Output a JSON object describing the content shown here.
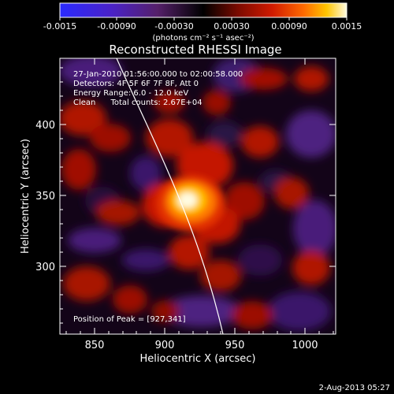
{
  "colorbar": {
    "tick_labels": [
      "-0.0015",
      "-0.00090",
      "-0.00030",
      "0.00030",
      "0.00090",
      "0.0015"
    ],
    "unit_label": "(photons cm⁻² s⁻¹ asec⁻²)"
  },
  "plot": {
    "title": "Reconstructed RHESSI Image",
    "x_axis_label": "Heliocentric X (arcsec)",
    "y_axis_label": "Heliocentric Y (arcsec)",
    "x_ticks": [
      "850",
      "900",
      "950",
      "1000"
    ],
    "y_ticks": [
      "400",
      "350",
      "300"
    ]
  },
  "annotations": {
    "time_range": "27-Jan-2010 01:56:00.000 to 02:00:58.000",
    "detectors": "Detectors: 4F 5F 6F 7F 8F, Att 0",
    "energy_range": "Energy Range: 6.0 - 12.0 keV",
    "method_counts": "Clean      Total counts: 2.67E+04",
    "peak_position": "Position of Peak = [927,341]"
  },
  "footer": {
    "date_stamp": "2-Aug-2013 05:27"
  }
}
